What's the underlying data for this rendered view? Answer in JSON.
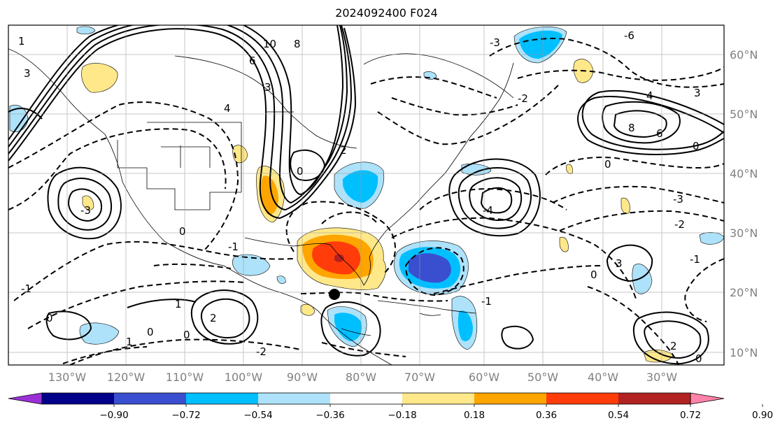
{
  "title": "2024092400 F024",
  "map": {
    "lon_labels": [
      "130°W",
      "120°W",
      "110°W",
      "100°W",
      "90°W",
      "80°W",
      "70°W",
      "60°W",
      "50°W",
      "40°W",
      "30°W"
    ],
    "lat_labels": [
      "60°N",
      "50°N",
      "40°N",
      "30°N",
      "20°N",
      "10°N"
    ],
    "marker": {
      "lon": -85.3,
      "lat": 20.0,
      "color": "#000000"
    }
  },
  "contour_labels": [
    "10",
    "8",
    "6",
    "4",
    "3",
    "2",
    "1",
    "0",
    "-1",
    "-2",
    "-3",
    "-4",
    "-6"
  ],
  "colorbar": {
    "colors": [
      "#9b30d9",
      "#00008b",
      "#3a4fcf",
      "#00bfff",
      "#aee2fa",
      "#ffffff",
      "#ffe88a",
      "#ffa500",
      "#ff3c0a",
      "#b22222",
      "#ff83a8"
    ],
    "tick_labels": [
      "−0.90",
      "−0.72",
      "−0.54",
      "−0.36",
      "−0.18",
      "0.18",
      "0.36",
      "0.54",
      "0.72",
      "0.90"
    ]
  }
}
